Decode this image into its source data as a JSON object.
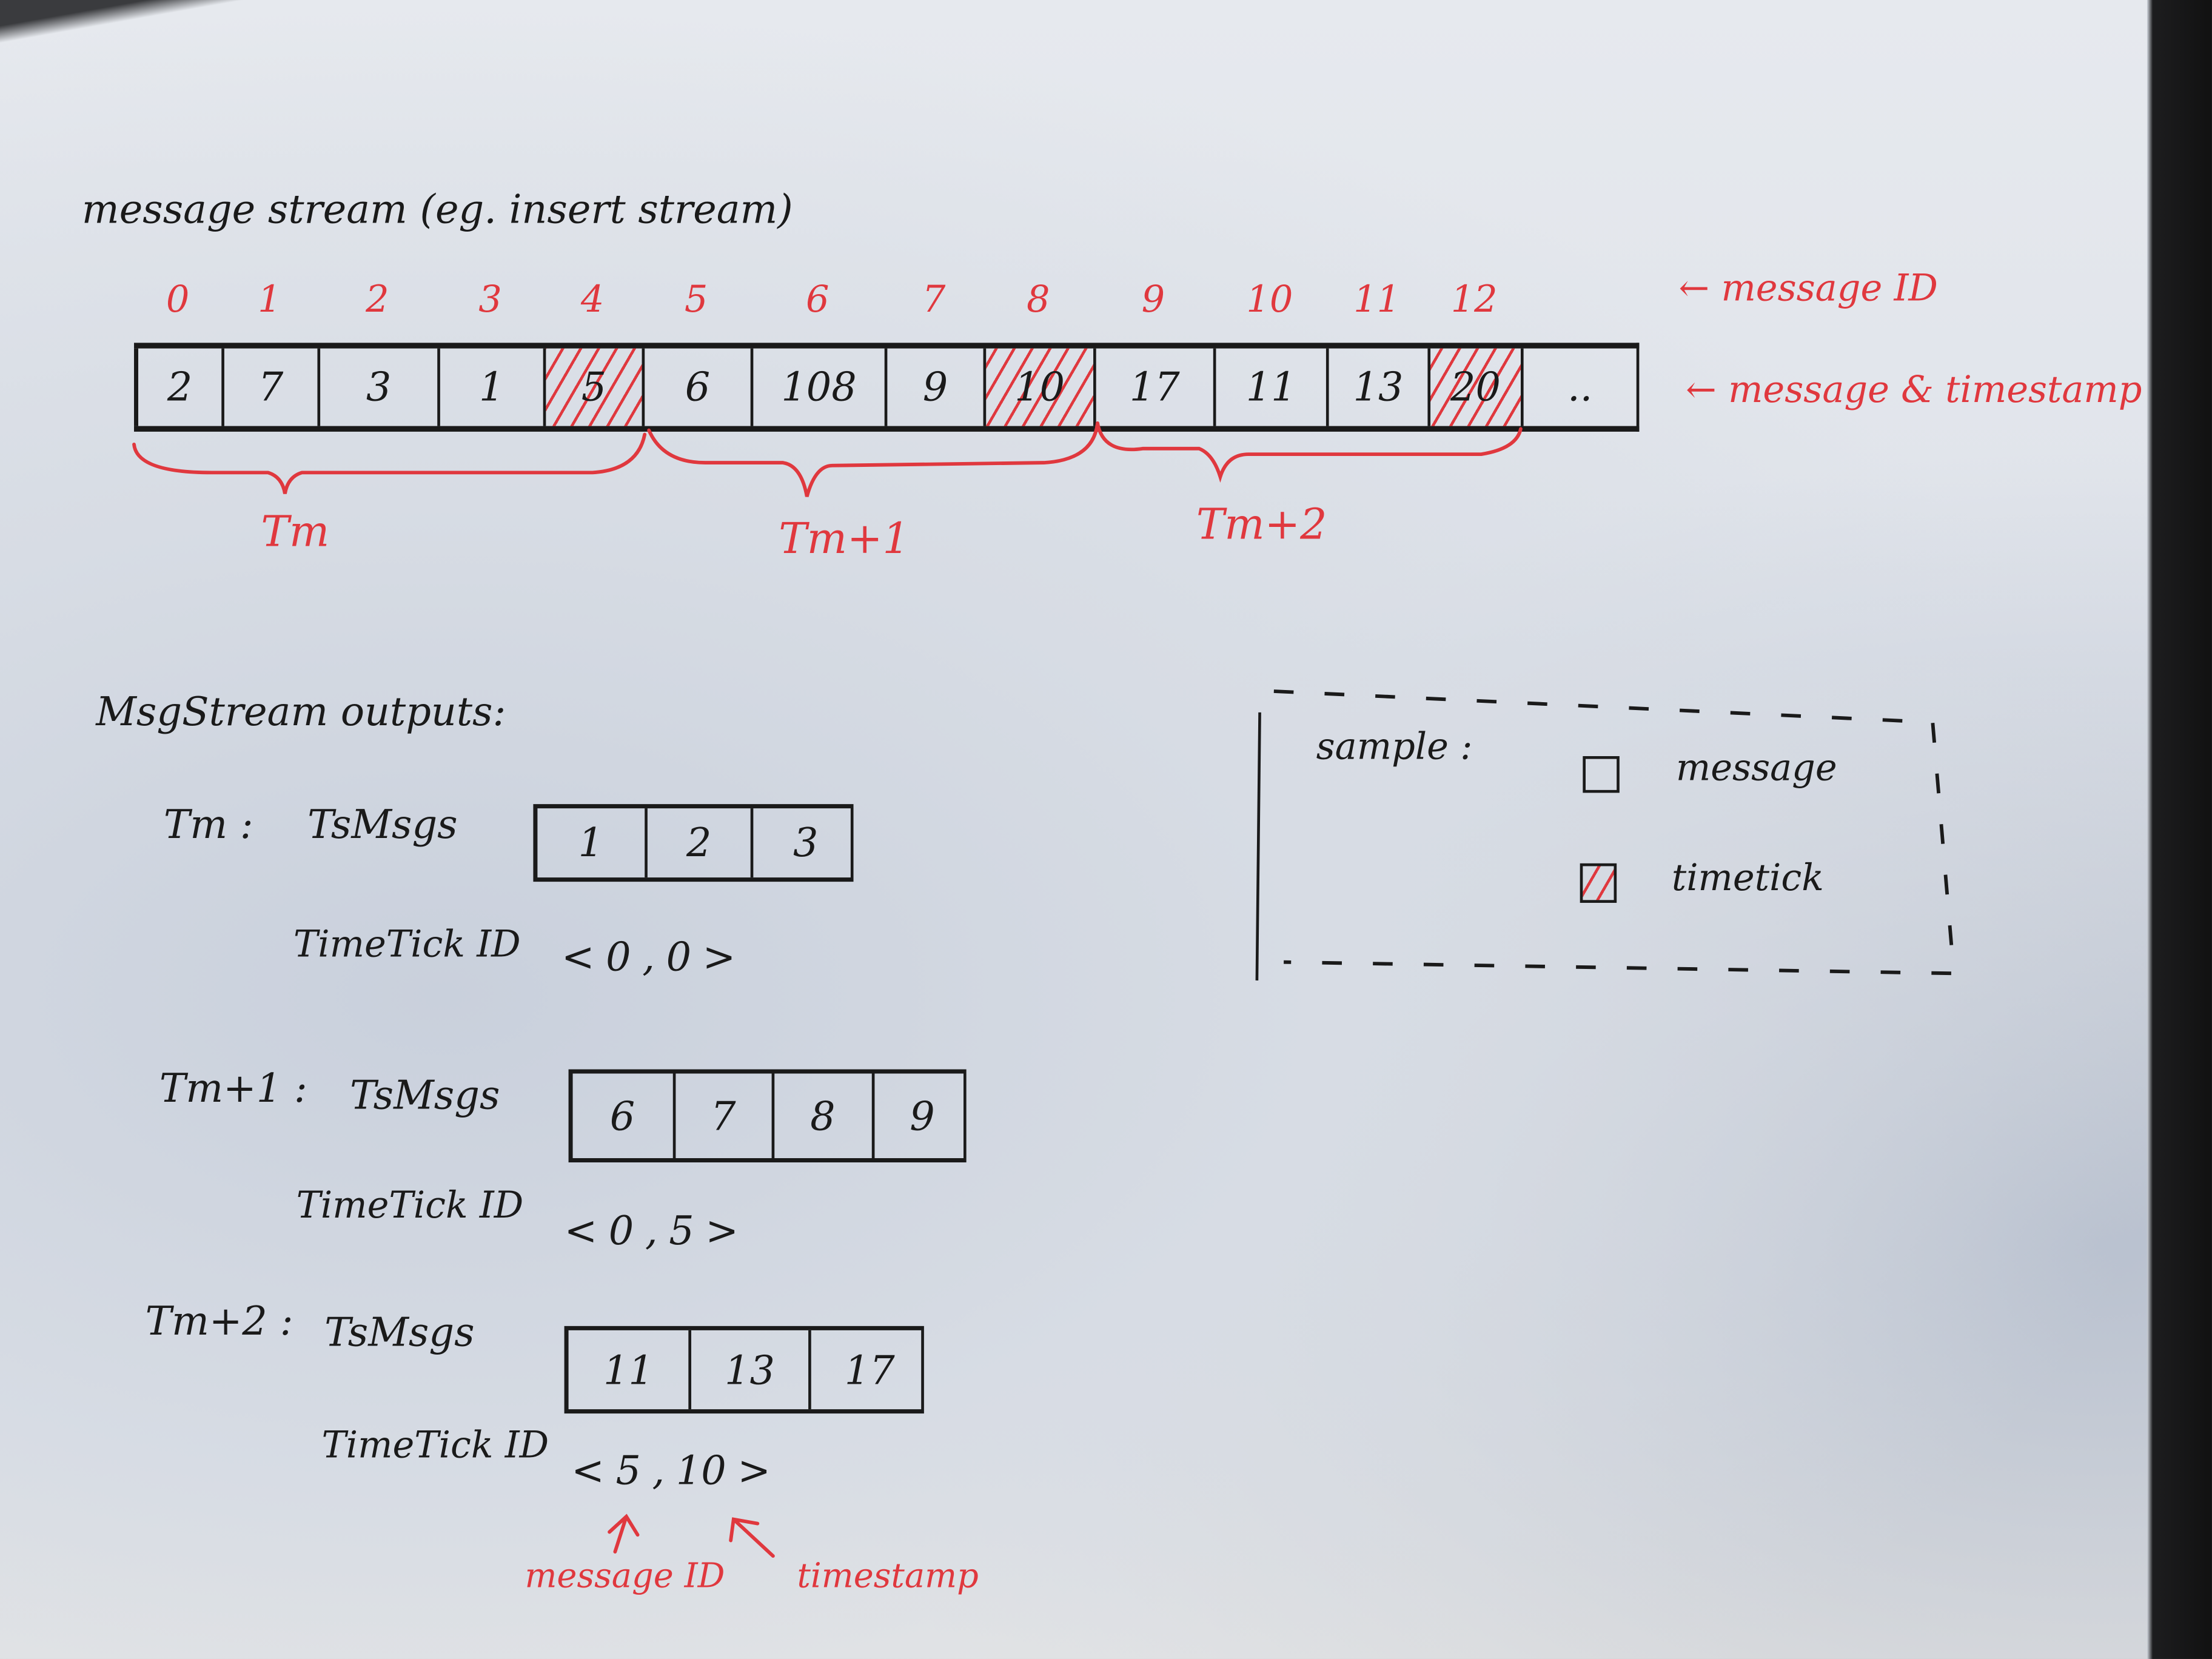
{
  "title": "message stream (eg. insert stream)",
  "stream": {
    "message_ids": [
      "0",
      "1",
      "2",
      "3",
      "4",
      "5",
      "6",
      "7",
      "8",
      "9",
      "10",
      "11",
      "12"
    ],
    "timestamps": [
      "2",
      "7",
      "3",
      "1",
      "5",
      "6",
      "108",
      "9",
      "10",
      "17",
      "11",
      "13",
      "20",
      ".."
    ],
    "timetick_indices": [
      4,
      8,
      12
    ],
    "annotation_message_id": "← message ID",
    "annotation_message_timestamp": "← message & timestamp"
  },
  "periods": [
    {
      "label": "Tm"
    },
    {
      "label": "Tm+1"
    },
    {
      "label": "Tm+2"
    }
  ],
  "outputs": {
    "heading": "MsgStream outputs:",
    "ts_msgs_label": "TsMsgs",
    "time_tick_label": "TimeTick ID",
    "groups": [
      {
        "period": "Tm :",
        "ts_msgs": [
          "1",
          "2",
          "3"
        ],
        "time_tick": {
          "open": "<",
          "message_id": "0",
          "sep": ",",
          "timestamp": "0",
          "close": ">"
        }
      },
      {
        "period": "Tm+1 :",
        "ts_msgs": [
          "6",
          "7",
          "8",
          "9"
        ],
        "time_tick": {
          "open": "<",
          "message_id": "0",
          "sep": ",",
          "timestamp": "5",
          "close": ">"
        }
      },
      {
        "period": "Tm+2 :",
        "ts_msgs": [
          "11",
          "13",
          "17"
        ],
        "time_tick": {
          "open": "<",
          "message_id": "5",
          "sep": ",",
          "timestamp": "10",
          "close": ">"
        }
      }
    ]
  },
  "callouts": {
    "message_id": "message ID",
    "timestamp": "timestamp"
  },
  "legend": {
    "title": "sample :",
    "items": [
      {
        "label": "message",
        "type": "message"
      },
      {
        "label": "timetick",
        "type": "timetick"
      }
    ]
  },
  "colors": {
    "ink": "#1a1a1a",
    "red": "#e0383e",
    "paper": "#dfe3ea"
  }
}
